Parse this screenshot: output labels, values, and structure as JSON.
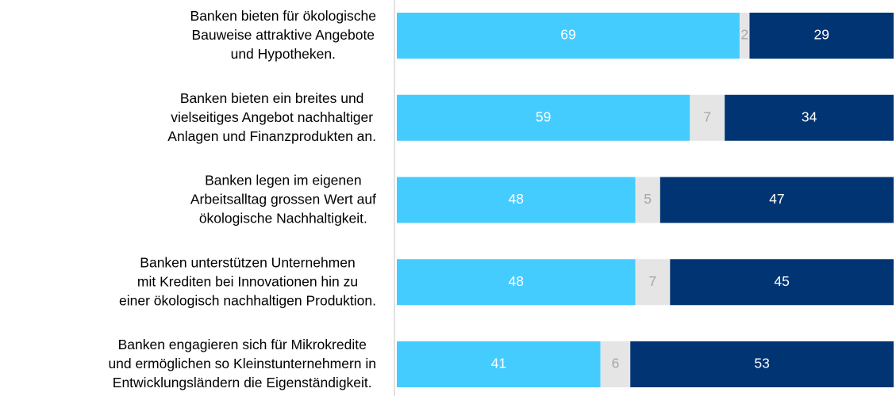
{
  "chart_data": {
    "type": "stacked-bar-horizontal",
    "categories": [
      "Banken bieten für ökologische\nBauweise attraktive Angebote\nund Hypotheken.",
      "Banken bieten ein breites und\nvielseitiges Angebot nachhaltiger\nAnlagen und Finanzprodukten an.",
      "Banken legen im eigenen\nArbeitsalltag grossen Wert auf\nökologische Nachhaltigkeit.",
      "Banken unterstützen Unternehmen\nmit Krediten bei Innovationen hin zu\neiner ökologisch nachhaltigen Produktion.",
      "Banken engagieren sich für Mikrokredite\nund ermöglichen so Kleinstunternehmern in\nEntwicklungsländern die Eigenständigkeit."
    ],
    "series": [
      {
        "color": "#45ccff",
        "label_color": "#ffffff",
        "values": [
          69,
          59,
          48,
          48,
          41
        ]
      },
      {
        "color": "#e5e5e5",
        "label_color": "#a6a6a6",
        "values": [
          2,
          7,
          5,
          7,
          6
        ]
      },
      {
        "color": "#003473",
        "label_color": "#ffffff",
        "values": [
          29,
          34,
          47,
          45,
          53
        ]
      }
    ],
    "xlim": [
      0,
      100
    ]
  }
}
